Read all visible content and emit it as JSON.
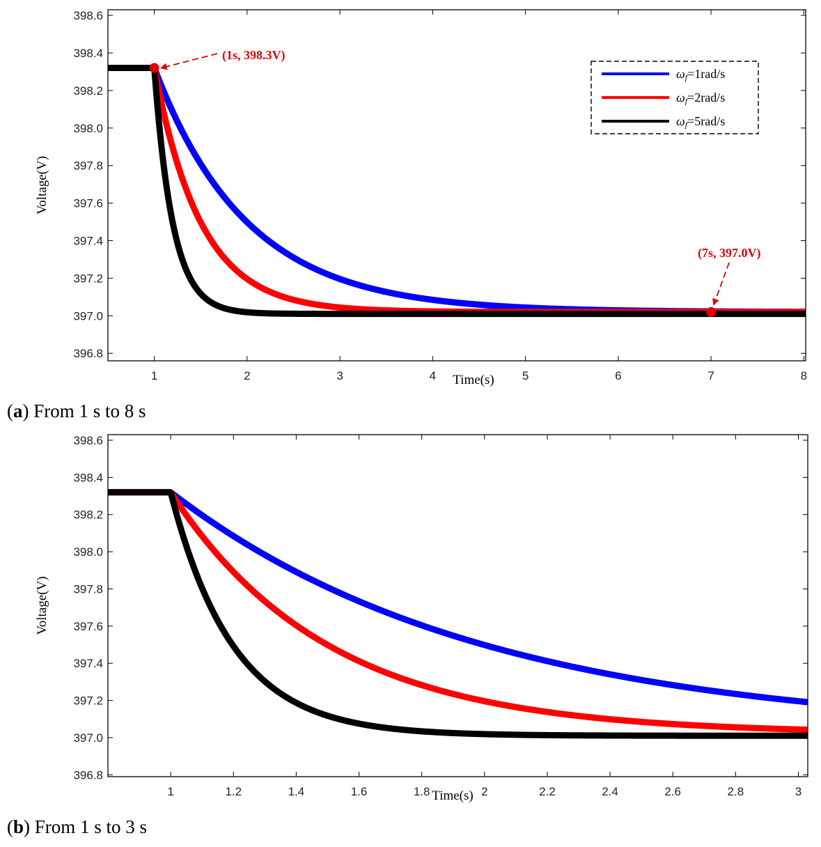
{
  "chart_data": [
    {
      "type": "line",
      "xlabel": "Time(s)",
      "ylabel": "Voltage(V)",
      "xlim": [
        0.5,
        8.02
      ],
      "ylim": [
        396.76,
        398.63
      ],
      "xticks": [
        1,
        2,
        3,
        4,
        5,
        6,
        7,
        8
      ],
      "yticks": [
        396.8,
        397.0,
        397.2,
        397.4,
        397.6,
        397.8,
        398.0,
        398.2,
        398.4,
        398.6
      ],
      "xtick_labels": [
        "1",
        "2",
        "3",
        "4",
        "5",
        "6",
        "7",
        "8"
      ],
      "ytick_labels": [
        "396.8",
        "397.0",
        "397.2",
        "397.4",
        "397.6",
        "397.8",
        "398.0",
        "398.2",
        "398.4",
        "398.6"
      ],
      "legend_position": "top-right",
      "series": [
        {
          "name": "ωf=1rad/s",
          "color": "#0000ff",
          "initial": 398.32,
          "final": 397.02,
          "step_time": 1,
          "rate": 1
        },
        {
          "name": "ωf=2rad/s",
          "color": "#ff0000",
          "initial": 398.32,
          "final": 397.02,
          "step_time": 1,
          "rate": 2
        },
        {
          "name": "ωf=5rad/s",
          "color": "#000000",
          "initial": 398.32,
          "final": 397.01,
          "step_time": 1,
          "rate": 5
        }
      ],
      "annotations": [
        {
          "text": "(1s, 398.3V)",
          "x": 1,
          "y": 398.32
        },
        {
          "text": "(7s, 397.0V)",
          "x": 7,
          "y": 397.02
        }
      ]
    },
    {
      "type": "line",
      "xlabel": "Time(s)",
      "ylabel": "Voltage(V)",
      "xlim": [
        0.8,
        3.03
      ],
      "ylim": [
        396.79,
        398.63
      ],
      "xticks": [
        1,
        1.2,
        1.4,
        1.6,
        1.8,
        2,
        2.2,
        2.4,
        2.6,
        2.8,
        3
      ],
      "yticks": [
        396.8,
        397.0,
        397.2,
        397.4,
        397.6,
        397.8,
        398.0,
        398.2,
        398.4,
        398.6
      ],
      "xtick_labels": [
        "1",
        "1.2",
        "1.4",
        "1.6",
        "1.8",
        "2",
        "2.2",
        "2.4",
        "2.6",
        "2.8",
        "3"
      ],
      "ytick_labels": [
        "396.8",
        "397.0",
        "397.2",
        "397.4",
        "397.6",
        "397.8",
        "398.0",
        "398.2",
        "398.4",
        "398.6"
      ],
      "series": [
        {
          "name": "ωf=1rad/s",
          "color": "#0000ff",
          "initial": 398.32,
          "final": 397.02,
          "step_time": 1,
          "rate": 1
        },
        {
          "name": "ωf=2rad/s",
          "color": "#ff0000",
          "initial": 398.32,
          "final": 397.02,
          "step_time": 1,
          "rate": 2
        },
        {
          "name": "ωf=5rad/s",
          "color": "#000000",
          "initial": 398.32,
          "final": 397.01,
          "step_time": 1,
          "rate": 5
        }
      ]
    }
  ],
  "legend": {
    "entries": [
      {
        "symbol": "ω",
        "subscript": "f",
        "rest": "=1rad/s",
        "color": "#0000ff"
      },
      {
        "symbol": "ω",
        "subscript": "f",
        "rest": "=2rad/s",
        "color": "#ff0000"
      },
      {
        "symbol": "ω",
        "subscript": "f",
        "rest": "=5rad/s",
        "color": "#000000"
      }
    ]
  },
  "captions": {
    "a_letter": "a",
    "a_text": " From 1 s to 8 s",
    "b_letter": "b",
    "b_text": " From 1 s to 3 s"
  }
}
